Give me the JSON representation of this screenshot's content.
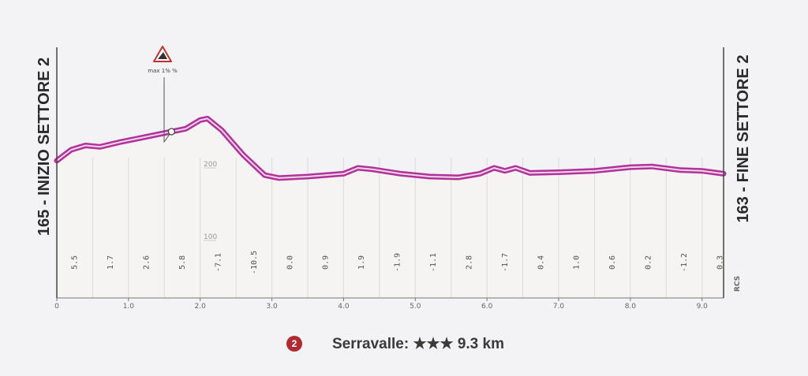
{
  "chart_data": {
    "type": "area",
    "title": "",
    "start_label": "165 - INIZIO SETTORE 2",
    "end_label": "163 - FINE SETTORE 2",
    "brand": "RCS",
    "xlim": [
      0,
      9.3
    ],
    "x_ticks": [
      "0",
      "1.0",
      "2.0",
      "3.0",
      "4.0",
      "5.0",
      "6.0",
      "7.0",
      "8.0",
      "9.0"
    ],
    "y_ticks": [
      "200",
      "100"
    ],
    "x": [
      0,
      0.2,
      0.4,
      0.6,
      0.9,
      1.2,
      1.5,
      1.8,
      2.0,
      2.1,
      2.3,
      2.6,
      2.9,
      3.1,
      3.5,
      4.0,
      4.2,
      4.4,
      4.8,
      5.2,
      5.6,
      5.9,
      6.1,
      6.25,
      6.4,
      6.6,
      7.0,
      7.5,
      8.0,
      8.3,
      8.7,
      9.0,
      9.3
    ],
    "y": [
      210,
      225,
      231,
      229,
      236,
      242,
      248,
      254,
      266,
      268,
      252,
      218,
      190,
      186,
      188,
      192,
      200,
      198,
      192,
      188,
      187,
      192,
      200,
      196,
      200,
      193,
      194,
      196,
      201,
      202,
      197,
      196,
      192
    ],
    "gradients": [
      "5.5",
      "1.7",
      "2.6",
      "5.8",
      "-7.1",
      "-10.5",
      "0.0",
      "0.9",
      "1.9",
      "-1.9",
      "-1.1",
      "2.8",
      "-1.7",
      "0.4",
      "1.0",
      "0.6",
      "0.2",
      "-1.2",
      "0.3"
    ],
    "annotation": {
      "label": "max 1% %",
      "x": 1.6,
      "y": 250
    },
    "line_color": "#b0329a",
    "fill_color": "#f6f4f3"
  },
  "legend": {
    "badge": "2",
    "text": "Serravalle: ★★★ 9.3 km",
    "badge_color": "#b02a30"
  }
}
